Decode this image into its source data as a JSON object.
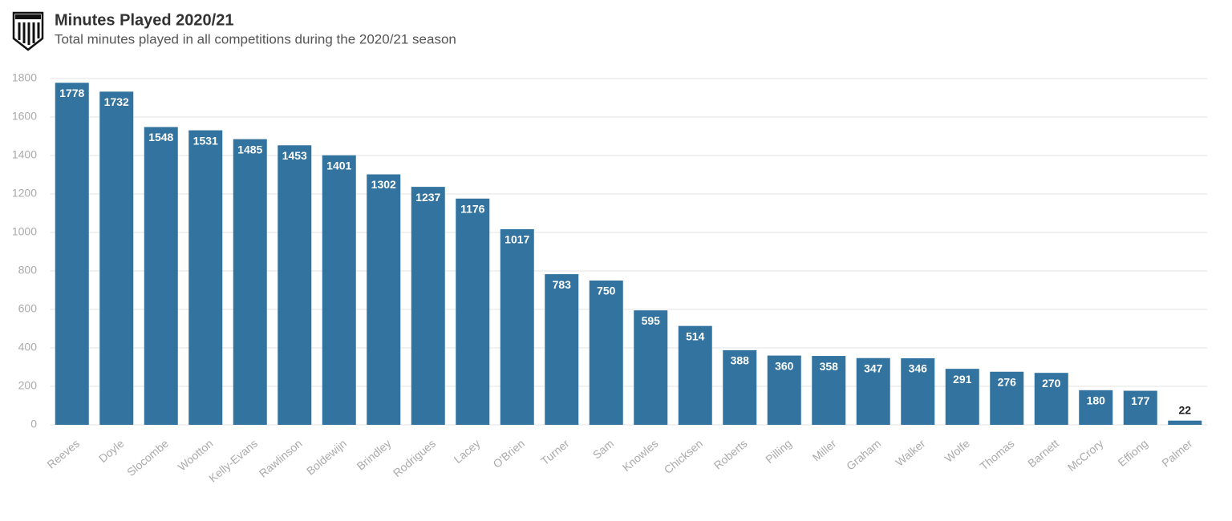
{
  "chart_data": {
    "type": "bar",
    "title": "Minutes Played 2020/21",
    "subtitle": "Total minutes played in all competitions during the 2020/21 season",
    "categories": [
      "Reeves",
      "Doyle",
      "Slocombe",
      "Wootton",
      "Kelly-Evans",
      "Rawlinson",
      "Boldewijn",
      "Brindley",
      "Rodrigues",
      "Lacey",
      "O'Brien",
      "Turner",
      "Sam",
      "Knowles",
      "Chicksen",
      "Roberts",
      "Pilling",
      "Miller",
      "Graham",
      "Walker",
      "Wolfe",
      "Thomas",
      "Barnett",
      "McCrory",
      "Effiong",
      "Palmer"
    ],
    "values": [
      1778,
      1732,
      1548,
      1531,
      1485,
      1453,
      1401,
      1302,
      1237,
      1176,
      1017,
      783,
      750,
      595,
      514,
      388,
      360,
      358,
      347,
      346,
      291,
      276,
      270,
      180,
      177,
      22
    ],
    "color": "#33739f",
    "ylim": [
      0,
      1800
    ],
    "yticks": [
      0,
      200,
      400,
      600,
      800,
      1000,
      1200,
      1400,
      1600,
      1800
    ],
    "grid": true
  }
}
